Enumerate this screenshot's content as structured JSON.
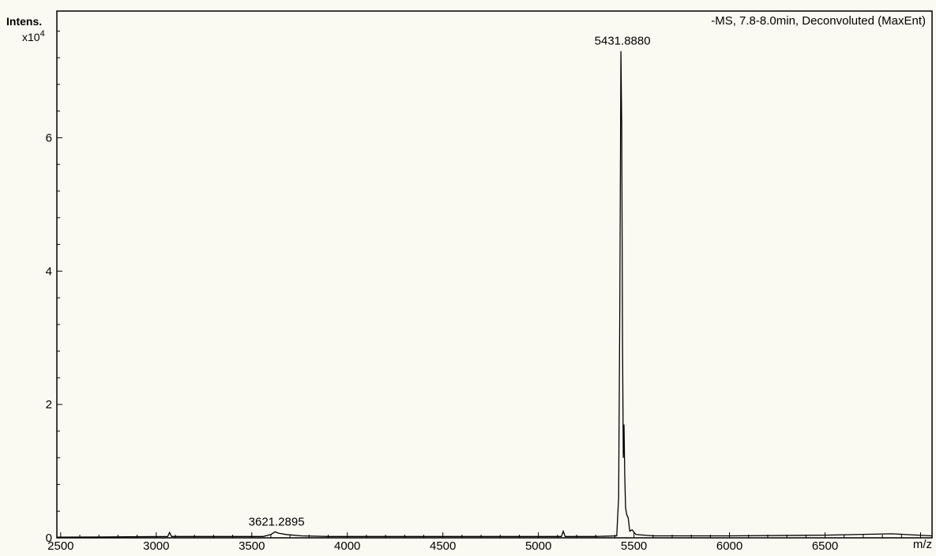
{
  "chart_data": {
    "type": "line",
    "title": "-MS, 7.8-8.0min, Deconvoluted (MaxEnt)",
    "ylabel": "Intens.",
    "y_multiplier_base": "x10",
    "y_multiplier_exp": "4",
    "xlabel": "m/z",
    "xlim": [
      2480,
      7060
    ],
    "ylim": [
      0,
      7.9
    ],
    "x_ticks": [
      {
        "value": 2500,
        "label": "2500"
      },
      {
        "value": 3000,
        "label": "3000"
      },
      {
        "value": 3500,
        "label": "3500"
      },
      {
        "value": 4000,
        "label": "4000"
      },
      {
        "value": 4500,
        "label": "4500"
      },
      {
        "value": 5000,
        "label": "5000"
      },
      {
        "value": 5500,
        "label": "5500"
      },
      {
        "value": 6000,
        "label": "6000"
      },
      {
        "value": 6500,
        "label": "6500"
      }
    ],
    "y_ticks": [
      {
        "value": 0,
        "label": "0"
      },
      {
        "value": 2,
        "label": "2"
      },
      {
        "value": 4,
        "label": "4"
      },
      {
        "value": 6,
        "label": "6"
      }
    ],
    "series": [
      {
        "points": [
          [
            2480,
            0.01
          ],
          [
            3060,
            0.02
          ],
          [
            3070,
            0.08
          ],
          [
            3080,
            0.02
          ],
          [
            3560,
            0.02
          ],
          [
            3600,
            0.05
          ],
          [
            3621.2895,
            0.09
          ],
          [
            3640,
            0.07
          ],
          [
            3680,
            0.05
          ],
          [
            3760,
            0.03
          ],
          [
            3900,
            0.02
          ],
          [
            4800,
            0.02
          ],
          [
            5120,
            0.02
          ],
          [
            5130,
            0.1
          ],
          [
            5140,
            0.02
          ],
          [
            5300,
            0.02
          ],
          [
            5410,
            0.03
          ],
          [
            5420,
            0.6
          ],
          [
            5426,
            3.5
          ],
          [
            5431.888,
            7.3
          ],
          [
            5436,
            6.2
          ],
          [
            5440,
            3.0
          ],
          [
            5444,
            1.2
          ],
          [
            5448,
            1.7
          ],
          [
            5452,
            0.9
          ],
          [
            5456,
            0.45
          ],
          [
            5462,
            0.35
          ],
          [
            5470,
            0.3
          ],
          [
            5478,
            0.1
          ],
          [
            5490,
            0.12
          ],
          [
            5510,
            0.05
          ],
          [
            5600,
            0.03
          ],
          [
            6000,
            0.03
          ],
          [
            6500,
            0.04
          ],
          [
            6850,
            0.06
          ],
          [
            7060,
            0.03
          ]
        ]
      }
    ],
    "annotations": [
      {
        "x": 5431.888,
        "y": 7.3,
        "label": "5431.8880"
      },
      {
        "x": 3621.2895,
        "y": 0.09,
        "label": "3621.2895"
      }
    ]
  }
}
